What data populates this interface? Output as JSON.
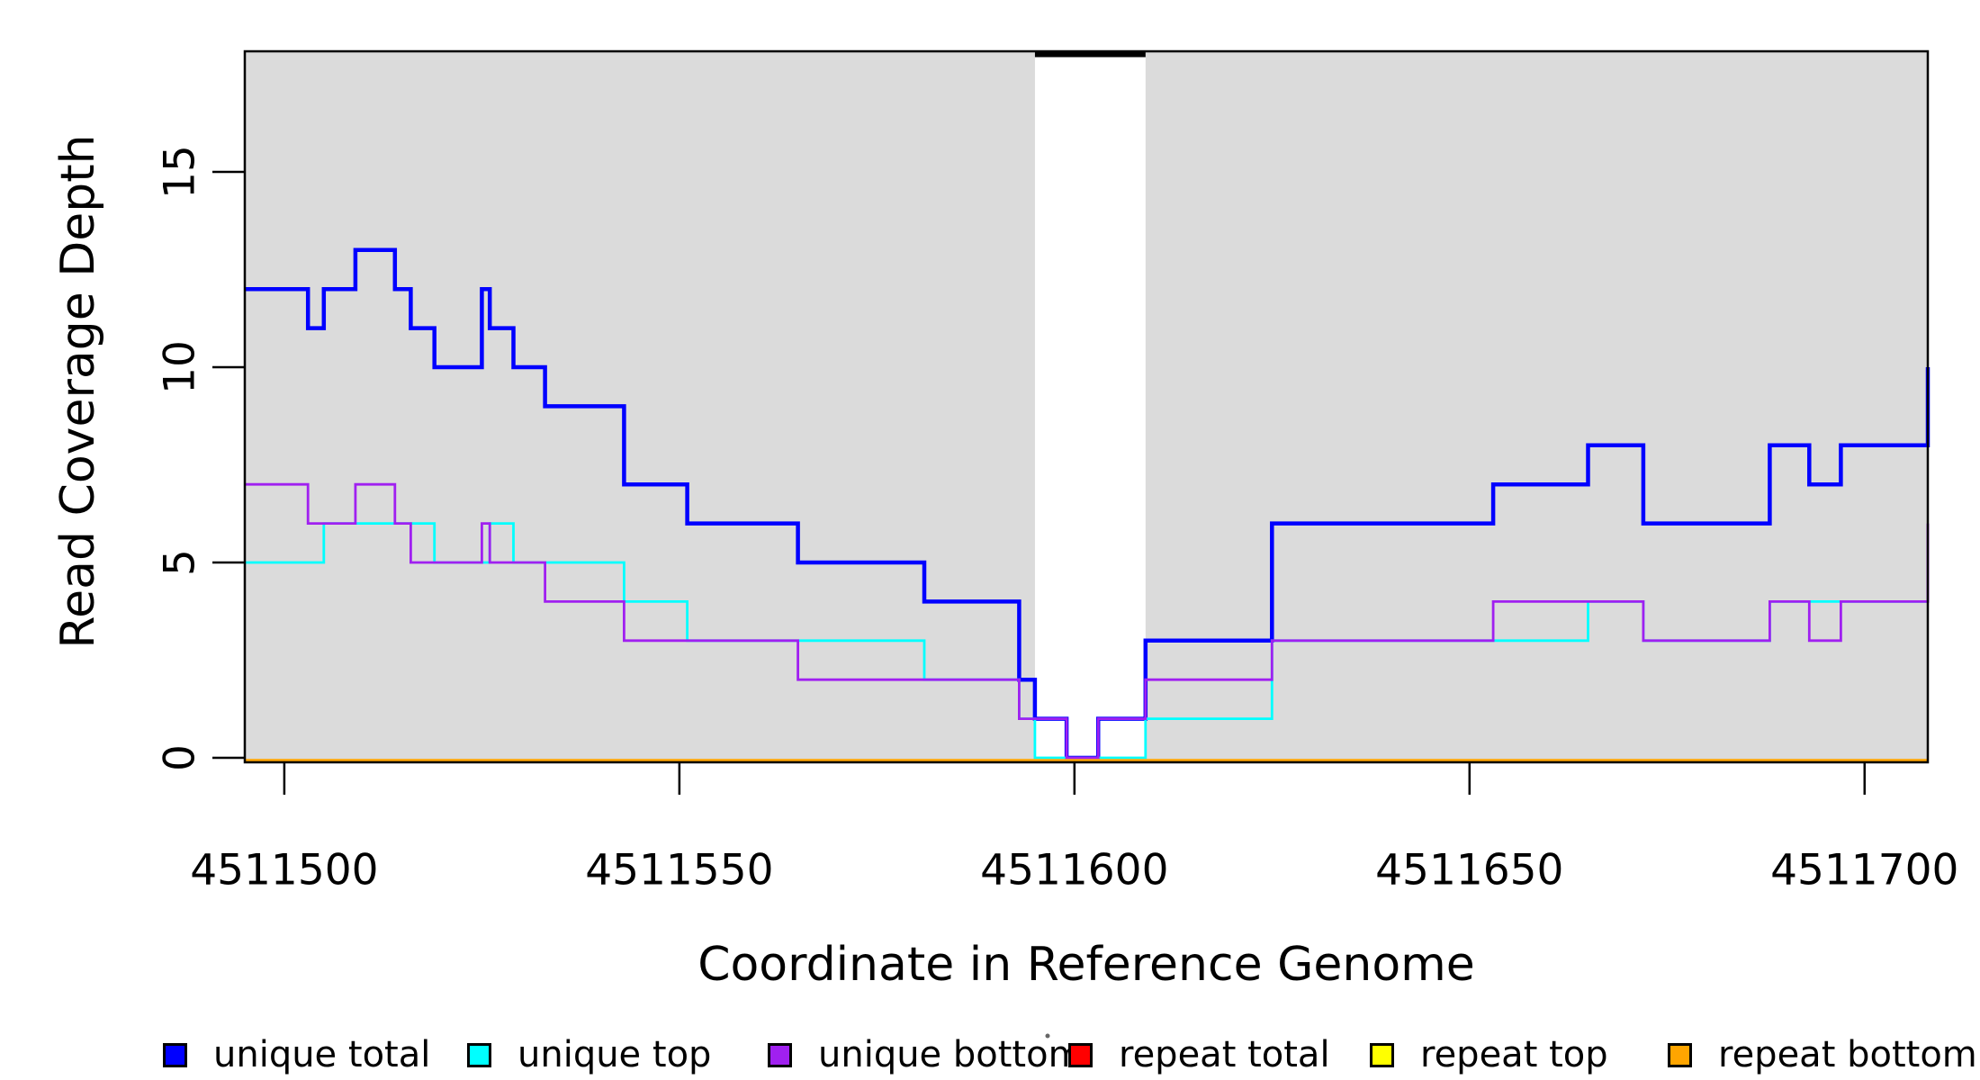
{
  "figure": {
    "x_axis_title": "Coordinate in Reference Genome",
    "y_axis_title": "Read Coverage Depth"
  },
  "colors": {
    "background": "#FFFFFF",
    "panel_shading": "#DBDBDB",
    "axis": "#000000",
    "unique_total": "#0000FF",
    "unique_top": "#00FFFF",
    "unique_bottom": "#A020F0",
    "repeat_total": "#FF0000",
    "repeat_top": "#FFFF00",
    "repeat_bottom": "#FFA500"
  },
  "chart_data": {
    "type": "line",
    "subtype": "step",
    "title": "",
    "xlabel": "Coordinate in Reference Genome",
    "ylabel": "Read Coverage Depth",
    "x_range": [
      4511495,
      4511708
    ],
    "y_range": [
      0,
      18
    ],
    "x_ticks": [
      4511500,
      4511550,
      4511600,
      4511650,
      4511700
    ],
    "x_tick_labels": [
      "4511500",
      "4511550",
      "4511600",
      "4511650",
      "4511700"
    ],
    "y_ticks": [
      0,
      5,
      10,
      15
    ],
    "y_tick_labels": [
      "0",
      "5",
      "10",
      "15"
    ],
    "grid": false,
    "legend_position": "bottom",
    "shaded_regions": [
      [
        4511495,
        4511595
      ],
      [
        4511609,
        4511708
      ]
    ],
    "gap_top_marker": [
      4511595,
      4511609
    ],
    "series": [
      {
        "name": "unique total",
        "color": "#0000FF",
        "width": 4.5,
        "steps": [
          [
            4511495,
            12
          ],
          [
            4511503,
            11
          ],
          [
            4511505,
            12
          ],
          [
            4511509,
            13
          ],
          [
            4511514,
            12
          ],
          [
            4511516,
            11
          ],
          [
            4511519,
            10
          ],
          [
            4511525,
            12
          ],
          [
            4511526,
            11
          ],
          [
            4511529,
            10
          ],
          [
            4511533,
            9
          ],
          [
            4511543,
            7
          ],
          [
            4511551,
            6
          ],
          [
            4511565,
            5
          ],
          [
            4511581,
            4
          ],
          [
            4511593,
            2
          ],
          [
            4511595,
            1
          ],
          [
            4511599,
            0
          ],
          [
            4511603,
            1
          ],
          [
            4511609,
            3
          ],
          [
            4511625,
            6
          ],
          [
            4511653,
            7
          ],
          [
            4511665,
            8
          ],
          [
            4511672,
            6
          ],
          [
            4511688,
            8
          ],
          [
            4511693,
            7
          ],
          [
            4511697,
            8
          ]
        ],
        "end_spike": 10
      },
      {
        "name": "unique top",
        "color": "#00FFFF",
        "width": 2.8,
        "steps": [
          [
            4511495,
            5
          ],
          [
            4511505,
            6
          ],
          [
            4511519,
            5
          ],
          [
            4511526,
            6
          ],
          [
            4511529,
            5
          ],
          [
            4511543,
            4
          ],
          [
            4511551,
            3
          ],
          [
            4511581,
            2
          ],
          [
            4511593,
            1
          ],
          [
            4511595,
            0
          ],
          [
            4511609,
            1
          ],
          [
            4511625,
            3
          ],
          [
            4511665,
            4
          ],
          [
            4511672,
            3
          ],
          [
            4511688,
            4
          ]
        ]
      },
      {
        "name": "unique bottom",
        "color": "#A020F0",
        "width": 2.8,
        "steps": [
          [
            4511495,
            7
          ],
          [
            4511503,
            6
          ],
          [
            4511509,
            7
          ],
          [
            4511514,
            6
          ],
          [
            4511516,
            5
          ],
          [
            4511525,
            6
          ],
          [
            4511526,
            5
          ],
          [
            4511533,
            4
          ],
          [
            4511543,
            3
          ],
          [
            4511565,
            2
          ],
          [
            4511593,
            1
          ],
          [
            4511599,
            0
          ],
          [
            4511603,
            1
          ],
          [
            4511609,
            2
          ],
          [
            4511625,
            3
          ],
          [
            4511653,
            4
          ],
          [
            4511672,
            3
          ],
          [
            4511688,
            4
          ],
          [
            4511693,
            3
          ],
          [
            4511697,
            4
          ]
        ],
        "end_spike": 6
      },
      {
        "name": "repeat total",
        "color": "#FF0000",
        "width": 2.8,
        "y_nudge": 3,
        "steps": [
          [
            4511495,
            0
          ]
        ]
      },
      {
        "name": "repeat top",
        "color": "#FFFF00",
        "width": 2.8,
        "y_nudge": 3,
        "steps": [
          [
            4511495,
            0
          ]
        ]
      },
      {
        "name": "repeat bottom",
        "color": "#FFA500",
        "width": 3.5,
        "y_nudge": 3,
        "steps": [
          [
            4511495,
            0
          ]
        ]
      }
    ]
  },
  "legend": {
    "items": [
      {
        "label": "unique total",
        "color": "#0000FF"
      },
      {
        "label": "unique top",
        "color": "#00FFFF"
      },
      {
        "label": "unique bottom",
        "color": "#A020F0"
      },
      {
        "label": "repeat total",
        "color": "#FF0000"
      },
      {
        "label": "repeat top",
        "color": "#FFFF00"
      },
      {
        "label": "repeat bottom",
        "color": "#FFA500"
      }
    ]
  }
}
